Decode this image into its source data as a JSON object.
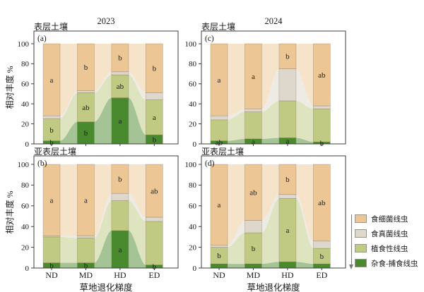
{
  "axes": {
    "ylabel": "相对丰度 %",
    "xlabel": "草地退化梯度",
    "yticks": [
      0,
      20,
      40,
      60,
      80,
      100
    ],
    "ylim": [
      0,
      100
    ],
    "categories": [
      "ND",
      "MD",
      "HD",
      "ED"
    ]
  },
  "legend": {
    "position": "right-bottom",
    "arrow_direction": "down",
    "items": [
      {
        "label": "食细菌线虫",
        "color": "#ecc795"
      },
      {
        "label": "食真菌线虫",
        "color": "#ded8cc"
      },
      {
        "label": "植食性线虫",
        "color": "#c0ca82"
      },
      {
        "label": "杂食-捕食线虫",
        "color": "#4a8a2e"
      }
    ]
  },
  "chart_data": [
    {
      "id": "a",
      "panel_label": "(a)",
      "soil_layer": "表层土壤",
      "year": "2023",
      "type": "bar",
      "stacked": true,
      "stream_links": true,
      "categories": [
        "ND",
        "MD",
        "HD",
        "ED"
      ],
      "ylim": [
        0,
        100
      ],
      "series": [
        {
          "name": "杂食-捕食线虫",
          "color": "#4a8a2e",
          "values": [
            3,
            22,
            46,
            9
          ],
          "sig_labels": [
            "b",
            "b",
            "a",
            "b"
          ]
        },
        {
          "name": "植食性线虫",
          "color": "#c0ca82",
          "values": [
            22,
            29,
            23,
            35
          ],
          "sig_labels": [
            "b",
            "ab",
            "ab",
            "a"
          ]
        },
        {
          "name": "食真菌线虫",
          "color": "#ded8cc",
          "values": [
            3,
            2,
            3,
            7
          ],
          "sig_labels": [
            null,
            null,
            null,
            null
          ]
        },
        {
          "name": "食细菌线虫",
          "color": "#ecc795",
          "values": [
            72,
            47,
            28,
            49
          ],
          "sig_labels": [
            "a",
            "b",
            "b",
            "b"
          ]
        }
      ]
    },
    {
      "id": "b",
      "panel_label": "(b)",
      "soil_layer": "亚表层土壤",
      "year": "2023",
      "type": "bar",
      "stacked": true,
      "stream_links": true,
      "categories": [
        "ND",
        "MD",
        "HD",
        "ED"
      ],
      "ylim": [
        0,
        100
      ],
      "series": [
        {
          "name": "杂食-捕食线虫",
          "color": "#4a8a2e",
          "values": [
            5,
            5,
            36,
            3
          ],
          "sig_labels": [
            "b",
            "b",
            "a",
            "b"
          ]
        },
        {
          "name": "植食性线虫",
          "color": "#c0ca82",
          "values": [
            25,
            24,
            29,
            42
          ],
          "sig_labels": [
            null,
            null,
            null,
            null
          ]
        },
        {
          "name": "食真菌线虫",
          "color": "#ded8cc",
          "values": [
            1,
            2,
            7,
            4
          ],
          "sig_labels": [
            null,
            null,
            null,
            null
          ]
        },
        {
          "name": "食细菌线虫",
          "color": "#ecc795",
          "values": [
            69,
            69,
            28,
            51
          ],
          "sig_labels": [
            "a",
            "a",
            "b",
            "ab"
          ]
        }
      ]
    },
    {
      "id": "c",
      "panel_label": "(c)",
      "soil_layer": "表层土壤",
      "year": "2024",
      "type": "bar",
      "stacked": true,
      "stream_links": true,
      "categories": [
        "ND",
        "MD",
        "HD",
        "ED"
      ],
      "ylim": [
        0,
        100
      ],
      "series": [
        {
          "name": "杂食-捕食线虫",
          "color": "#4a8a2e",
          "values": [
            3,
            5,
            6,
            2
          ],
          "sig_labels": [
            "ab",
            "a",
            "a",
            "b"
          ]
        },
        {
          "name": "植食性线虫",
          "color": "#c0ca82",
          "values": [
            21,
            27,
            37,
            33
          ],
          "sig_labels": [
            null,
            null,
            null,
            null
          ]
        },
        {
          "name": "食真菌线虫",
          "color": "#ded8cc",
          "values": [
            4,
            3,
            32,
            3
          ],
          "sig_labels": [
            null,
            null,
            null,
            null
          ]
        },
        {
          "name": "食细菌线虫",
          "color": "#ecc795",
          "values": [
            72,
            65,
            25,
            62
          ],
          "sig_labels": [
            "a",
            "a",
            "b",
            "ab"
          ]
        }
      ]
    },
    {
      "id": "d",
      "panel_label": "(d)",
      "soil_layer": "亚表层土壤",
      "year": "2024",
      "type": "bar",
      "stacked": true,
      "stream_links": true,
      "categories": [
        "ND",
        "MD",
        "HD",
        "ED"
      ],
      "ylim": [
        0,
        100
      ],
      "series": [
        {
          "name": "杂食-捕食线虫",
          "color": "#4a8a2e",
          "values": [
            4,
            4,
            6,
            4
          ],
          "sig_labels": [
            null,
            null,
            null,
            null
          ]
        },
        {
          "name": "植食性线虫",
          "color": "#c0ca82",
          "values": [
            16,
            30,
            61,
            15
          ],
          "sig_labels": [
            "b",
            "b",
            "a",
            "b"
          ]
        },
        {
          "name": "食真菌线虫",
          "color": "#ded8cc",
          "values": [
            2,
            12,
            4,
            7
          ],
          "sig_labels": [
            null,
            null,
            null,
            null
          ]
        },
        {
          "name": "食细菌线虫",
          "color": "#ecc795",
          "values": [
            78,
            54,
            29,
            74
          ],
          "sig_labels": [
            "a",
            "ab",
            "b",
            "ab"
          ]
        }
      ]
    }
  ]
}
